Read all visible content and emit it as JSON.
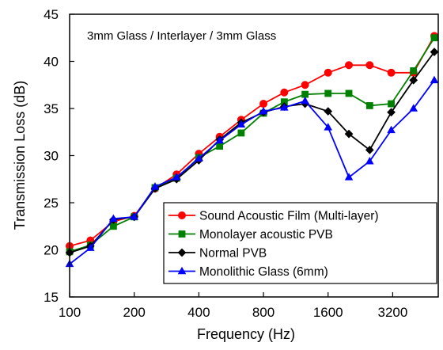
{
  "chart_data": {
    "type": "line",
    "annotation": "3mm Glass / Interlayer / 3mm Glass",
    "xlabel": "Frequency (Hz)",
    "ylabel": "Transmission Loss (dB)",
    "x_scale": "log",
    "x": [
      100,
      125,
      160,
      200,
      250,
      315,
      400,
      500,
      630,
      800,
      1000,
      1250,
      1600,
      2000,
      2500,
      3150,
      4000,
      5000
    ],
    "x_ticks": [
      100,
      200,
      400,
      800,
      1600,
      3200
    ],
    "x_tick_labels": [
      "100",
      "200",
      "400",
      "800",
      "1600",
      "3200"
    ],
    "ylim": [
      15,
      45
    ],
    "y_ticks": [
      15,
      20,
      25,
      30,
      35,
      40,
      45
    ],
    "y_tick_labels": [
      "15",
      "20",
      "25",
      "30",
      "35",
      "40",
      "45"
    ],
    "grid": false,
    "legend_position": "lower-right",
    "series": [
      {
        "name": "Sound Acoustic Film (Multi-layer)",
        "color": "#ff0000",
        "marker": "circle",
        "values": [
          20.4,
          21.0,
          23.0,
          23.6,
          26.5,
          28.0,
          30.2,
          32.0,
          33.8,
          35.5,
          36.7,
          37.5,
          38.8,
          39.6,
          39.6,
          38.8,
          38.8,
          42.7
        ]
      },
      {
        "name": "Monolayer acoustic PVB",
        "color": "#008000",
        "marker": "square",
        "values": [
          19.8,
          20.5,
          22.5,
          23.5,
          26.6,
          27.6,
          29.8,
          31.0,
          32.4,
          34.5,
          35.7,
          36.5,
          36.6,
          36.6,
          35.3,
          35.5,
          39.0,
          42.5
        ]
      },
      {
        "name": "Normal PVB",
        "color": "#000000",
        "marker": "diamond",
        "values": [
          19.7,
          20.4,
          23.2,
          23.5,
          26.5,
          27.5,
          29.5,
          31.7,
          33.5,
          34.6,
          35.2,
          35.5,
          34.7,
          32.3,
          30.6,
          34.6,
          38.0,
          41.0
        ]
      },
      {
        "name": "Monolithic Glass (6mm)",
        "color": "#0000ff",
        "marker": "triangle",
        "values": [
          18.5,
          20.2,
          23.3,
          23.5,
          26.7,
          27.7,
          29.7,
          31.6,
          33.3,
          34.7,
          35.1,
          35.8,
          33.0,
          27.7,
          29.4,
          32.7,
          35.0,
          38.0
        ]
      }
    ]
  }
}
